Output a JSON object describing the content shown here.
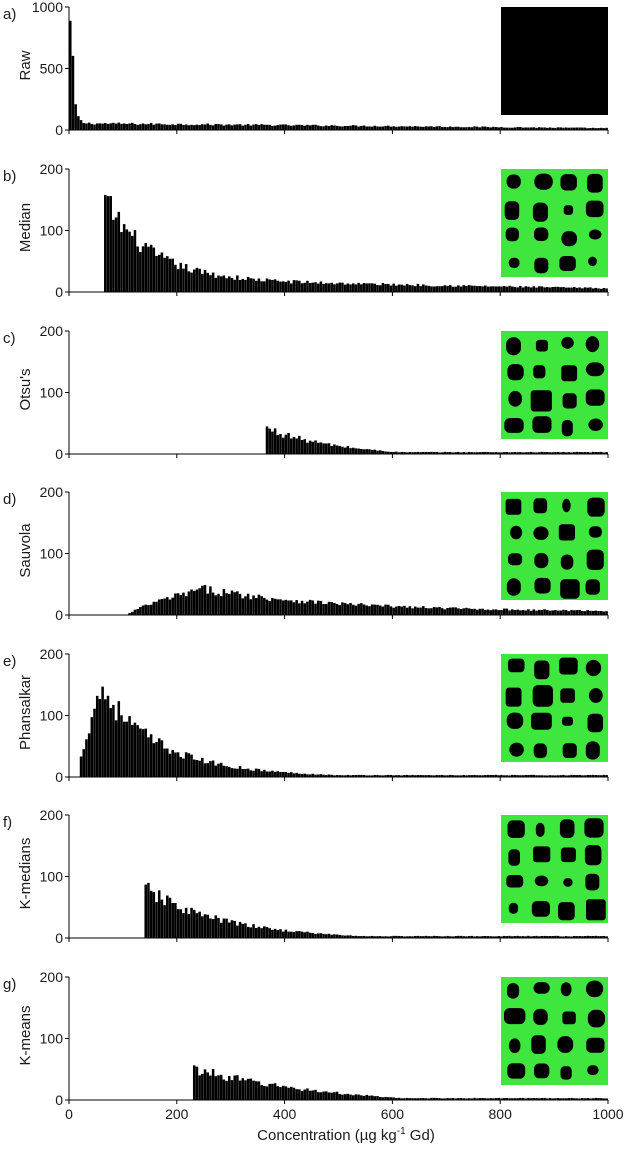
{
  "figure": {
    "xlabel_main": "Concentration (µg kg",
    "xlabel_sup": "-1",
    "xlabel_tail": " Gd)",
    "x_ticks": [
      "0",
      "200",
      "400",
      "600",
      "800",
      "1000"
    ]
  },
  "colors": {
    "bar": "#000000",
    "bar_edge": "#9a9a9a",
    "inset_mask": "#3ee63e",
    "inset_background": "#000000"
  },
  "chart_data": [
    {
      "type": "bar",
      "panel": "a)",
      "ylabel": "Raw",
      "ylim": [
        0,
        1000
      ],
      "yticks": [
        "0",
        "500",
        "1000"
      ],
      "xlim": [
        0,
        1000
      ],
      "bin_width": 5,
      "distribution": {
        "start": 0,
        "peak_x": 5,
        "peak_y": 850,
        "decay": 0.22,
        "floor": 55,
        "floor_slope": 0.04
      },
      "inset": "black-square"
    },
    {
      "type": "bar",
      "panel": "b)",
      "ylabel": "Median",
      "ylim": [
        0,
        200
      ],
      "yticks": [
        "0",
        "100",
        "200"
      ],
      "xlim": [
        0,
        1000
      ],
      "bin_width": 5,
      "distribution": {
        "start": 65,
        "peak_x": 67,
        "peak_y": 150,
        "decay": 0.012,
        "floor": 20,
        "floor_slope": 0.015
      },
      "inset": "mask"
    },
    {
      "type": "bar",
      "panel": "c)",
      "ylabel": "Otsu's",
      "ylim": [
        0,
        200
      ],
      "yticks": [
        "0",
        "100",
        "200"
      ],
      "xlim": [
        0,
        1000
      ],
      "bin_width": 5,
      "distribution": {
        "start": 365,
        "peak_x": 367,
        "peak_y": 42,
        "decay": 0.01,
        "floor": 10,
        "floor_slope": 0.04
      },
      "inset": "mask"
    },
    {
      "type": "bar",
      "panel": "d)",
      "ylabel": "Sauvola",
      "ylim": [
        0,
        200
      ],
      "yticks": [
        "0",
        "100",
        "200"
      ],
      "xlim": [
        0,
        1000
      ],
      "bin_width": 5,
      "distribution": {
        "start": 110,
        "rise_to_x": 250,
        "peak_y": 42,
        "decay": 0.004,
        "floor": 5,
        "floor_slope": 0.0
      },
      "inset": "mask"
    },
    {
      "type": "bar",
      "panel": "e)",
      "ylabel": "Phansalkar",
      "ylim": [
        0,
        200
      ],
      "yticks": [
        "0",
        "100",
        "200"
      ],
      "xlim": [
        0,
        1000
      ],
      "bin_width": 5,
      "distribution": {
        "start": 18,
        "rise_to_x": 60,
        "peak_y": 145,
        "decay": 0.01,
        "floor": 10,
        "floor_slope": 0.02
      },
      "inset": "mask"
    },
    {
      "type": "bar",
      "panel": "f)",
      "ylabel": "K-medians",
      "ylim": [
        0,
        200
      ],
      "yticks": [
        "0",
        "100",
        "200"
      ],
      "xlim": [
        0,
        1000
      ],
      "bin_width": 5,
      "distribution": {
        "start": 140,
        "peak_x": 145,
        "peak_y": 78,
        "decay": 0.008,
        "floor": 10,
        "floor_slope": 0.025
      },
      "inset": "mask"
    },
    {
      "type": "bar",
      "panel": "g)",
      "ylabel": "K-means",
      "ylim": [
        0,
        200
      ],
      "yticks": [
        "0",
        "100",
        "200"
      ],
      "xlim": [
        0,
        1000
      ],
      "bin_width": 5,
      "distribution": {
        "start": 230,
        "peak_x": 235,
        "peak_y": 50,
        "decay": 0.005,
        "floor": 8,
        "floor_slope": 0.03
      },
      "inset": "mask"
    }
  ]
}
